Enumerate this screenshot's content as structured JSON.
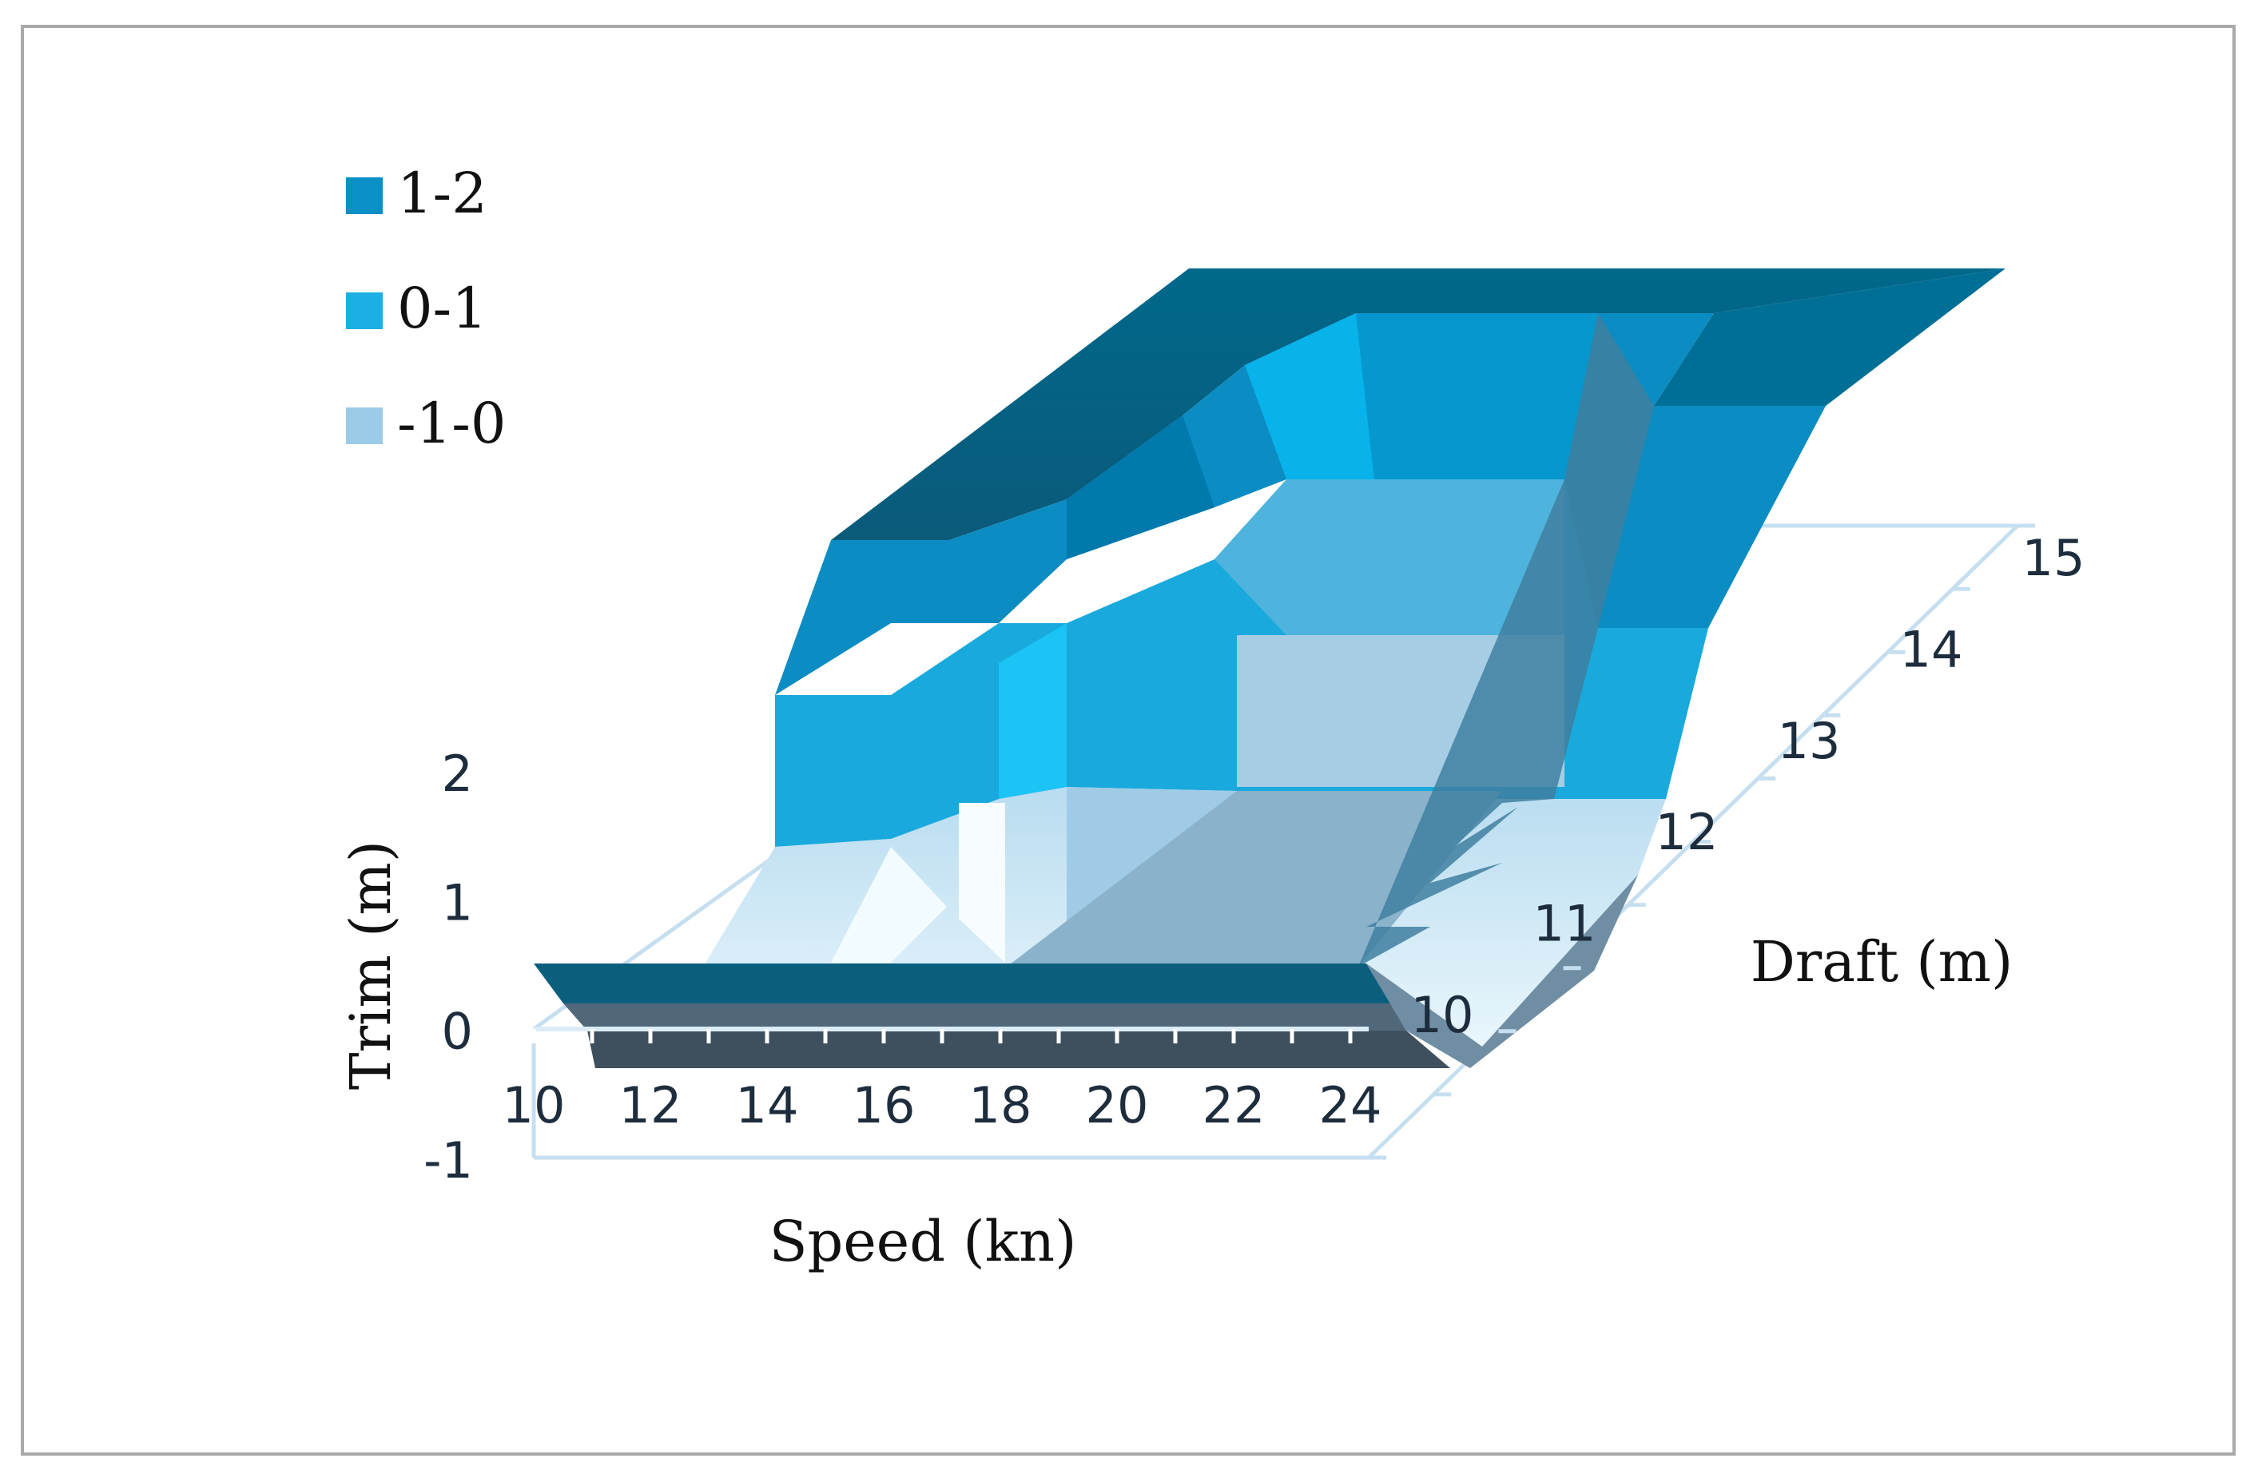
{
  "chart_data": {
    "type": "surface",
    "title": "",
    "xlabel": "Speed (kn)",
    "ylabel": "Trim (m)",
    "zlabel": "Draft (m)",
    "x_ticks": [
      "10",
      "12",
      "14",
      "16",
      "18",
      "20",
      "22",
      "24"
    ],
    "y_ticks": [
      "-1",
      "0",
      "1",
      "2"
    ],
    "z_ticks": [
      "10",
      "11",
      "12",
      "13",
      "14",
      "15"
    ],
    "ylim": [
      -1,
      2
    ],
    "grid": true,
    "legend_position": "top-left",
    "legend": [
      {
        "label": "1-2",
        "color": "#0a8fc7"
      },
      {
        "label": "0-1",
        "color": "#1ab0e6"
      },
      {
        "label": "-1-0",
        "color": "#9ccbe8"
      }
    ],
    "speed": [
      10,
      11,
      12,
      13,
      14,
      15,
      16,
      17,
      18,
      19,
      20,
      21,
      22,
      23,
      24
    ],
    "draft": [
      10,
      11,
      12,
      13,
      14,
      15
    ],
    "trim": [
      [
        0.5,
        0.5,
        0.5,
        0.5,
        0.5,
        0.5,
        0.5,
        0.5,
        0.5,
        0.5,
        0.5,
        0.5,
        0.5,
        0.5,
        0.5
      ],
      [
        0.5,
        0.5,
        0.8,
        1.0,
        0.5,
        0.7,
        0.3,
        0.5,
        0.4,
        0.5,
        0.5,
        0.6,
        0.6,
        0.6,
        0.7
      ],
      [
        0.5,
        0.8,
        1.3,
        1.4,
        1.0,
        1.2,
        1.1,
        1.1,
        1.2,
        1.2,
        1.2,
        1.1,
        1.0,
        1.1,
        1.2
      ],
      [
        1.0,
        1.2,
        1.5,
        1.6,
        1.5,
        1.6,
        1.5,
        1.5,
        1.6,
        1.6,
        1.6,
        1.5,
        1.5,
        1.6,
        1.7
      ],
      [
        1.6,
        1.8,
        1.8,
        1.8,
        1.9,
        1.9,
        1.8,
        1.9,
        1.9,
        1.9,
        1.9,
        1.9,
        1.8,
        1.9,
        2.0
      ],
      [
        2.0,
        2.0,
        2.0,
        2.0,
        2.0,
        2.0,
        2.0,
        2.0,
        2.0,
        2.0,
        2.0,
        2.0,
        2.0,
        2.0,
        2.0
      ]
    ]
  }
}
